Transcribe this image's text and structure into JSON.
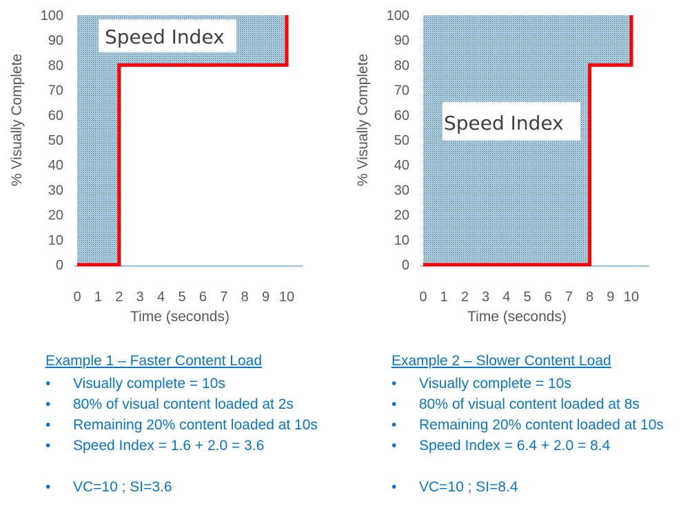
{
  "chart_data": [
    {
      "type": "line",
      "ylabel": "% Visually Complete",
      "xlabel": "Time (seconds)",
      "x_ticks": [
        "0",
        "1",
        "2",
        "3",
        "4",
        "5",
        "6",
        "7",
        "8",
        "9",
        "10"
      ],
      "y_ticks": [
        "0",
        "10",
        "20",
        "30",
        "40",
        "50",
        "60",
        "70",
        "80",
        "90",
        "100"
      ],
      "xlim": [
        0,
        10
      ],
      "ylim": [
        0,
        100
      ],
      "step_line": {
        "x": [
          0,
          2,
          2,
          10,
          10
        ],
        "y": [
          0,
          0,
          80,
          80,
          100
        ]
      },
      "shaded_area_label": "Speed Index",
      "colors": {
        "line": "#ff0000",
        "fill": "#2e75b6",
        "axis": "#5b9bd5"
      }
    },
    {
      "type": "line",
      "ylabel": "% Visually Complete",
      "xlabel": "Time (seconds)",
      "x_ticks": [
        "0",
        "1",
        "2",
        "3",
        "4",
        "5",
        "6",
        "7",
        "8",
        "9",
        "10"
      ],
      "y_ticks": [
        "0",
        "10",
        "20",
        "30",
        "40",
        "50",
        "60",
        "70",
        "80",
        "90",
        "100"
      ],
      "xlim": [
        0,
        10
      ],
      "ylim": [
        0,
        100
      ],
      "step_line": {
        "x": [
          0,
          8,
          8,
          10,
          10
        ],
        "y": [
          0,
          0,
          80,
          80,
          100
        ]
      },
      "shaded_area_label": "Speed Index",
      "colors": {
        "line": "#ff0000",
        "fill": "#2e75b6",
        "axis": "#5b9bd5"
      }
    }
  ],
  "examples": [
    {
      "heading": "Example 1 – Faster Content Load",
      "bullets": [
        "Visually complete = 10s",
        "80% of visual content loaded at 2s",
        "Remaining 20% content loaded at 10s",
        "Speed Index = 1.6 + 2.0 = 3.6",
        "VC=10 ; SI=3.6"
      ]
    },
    {
      "heading": "Example 2 – Slower Content Load",
      "bullets": [
        "Visually complete = 10s",
        "80% of visual content loaded at 8s",
        "Remaining 20% content loaded at 10s",
        "Speed Index = 6.4 + 2.0 = 8.4",
        "VC=10 ; SI=8.4"
      ]
    }
  ],
  "bullet_char": "•"
}
